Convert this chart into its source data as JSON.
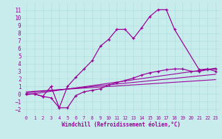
{
  "background_color": "#c8ecec",
  "line_color": "#990099",
  "grid_color": "#b0dede",
  "xlabel": "Windchill (Refroidissement éolien,°C)",
  "xlim": [
    -0.5,
    23.5
  ],
  "ylim": [
    -2.8,
    12.0
  ],
  "yticks": [
    -2,
    -1,
    0,
    1,
    2,
    3,
    4,
    5,
    6,
    7,
    8,
    9,
    10,
    11
  ],
  "xticks": [
    0,
    1,
    2,
    3,
    4,
    5,
    6,
    7,
    8,
    9,
    10,
    11,
    12,
    13,
    14,
    15,
    16,
    17,
    18,
    19,
    20,
    21,
    22,
    23
  ],
  "line1_x": [
    0,
    1,
    2,
    3,
    4,
    5,
    6,
    7,
    8,
    9,
    10,
    11,
    12,
    13,
    14,
    15,
    16,
    17,
    18,
    21,
    22,
    23
  ],
  "line1_y": [
    0,
    0,
    -0.3,
    1.0,
    -1.8,
    1.0,
    2.2,
    3.3,
    4.4,
    6.3,
    7.2,
    8.5,
    8.5,
    7.3,
    8.7,
    10.2,
    11.1,
    11.1,
    8.5,
    3.2,
    3.3,
    3.0
  ],
  "line2_x": [
    0,
    1,
    2,
    3,
    4,
    5,
    6,
    7,
    8,
    9,
    10,
    11,
    12,
    13,
    14,
    15,
    16,
    17,
    18,
    19,
    20,
    21,
    22,
    23
  ],
  "line2_y": [
    0,
    0,
    -0.3,
    -0.5,
    -1.8,
    -1.8,
    -0.2,
    0.3,
    0.5,
    0.7,
    1.2,
    1.5,
    1.8,
    2.1,
    2.5,
    2.8,
    3.0,
    3.2,
    3.3,
    3.3,
    3.0,
    3.0,
    3.2,
    3.3
  ],
  "line3_x": [
    0,
    23
  ],
  "line3_y": [
    -0.1,
    3.4
  ],
  "line4_x": [
    0,
    23
  ],
  "line4_y": [
    0.15,
    2.6
  ],
  "line5_x": [
    0,
    23
  ],
  "line5_y": [
    0.3,
    1.9
  ]
}
